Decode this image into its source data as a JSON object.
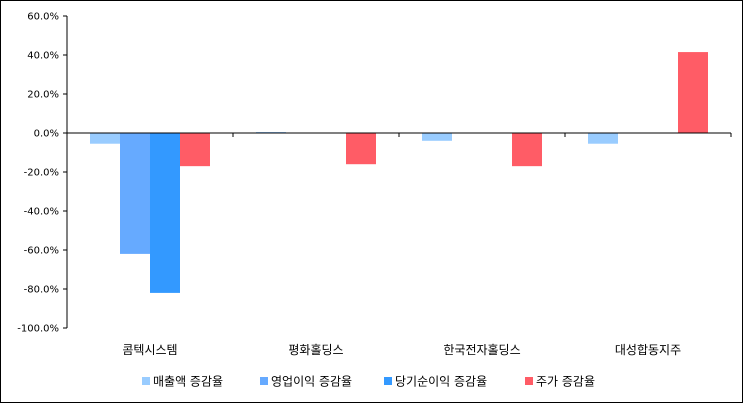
{
  "chart_data": {
    "type": "bar",
    "categories": [
      "콤텍시스템",
      "평화홀딩스",
      "한국전자홀딩스",
      "대성합동지주"
    ],
    "series": [
      {
        "name": "매출액 증감율",
        "color": "#99ccff",
        "values": [
          -5.5,
          0.5,
          -4.0,
          -5.5
        ]
      },
      {
        "name": "영업이익 증감율",
        "color": "#66aaff",
        "values": [
          -62.0,
          0,
          0,
          0
        ]
      },
      {
        "name": "당기순이익 증감율",
        "color": "#3399ff",
        "values": [
          -82.0,
          0,
          0,
          0
        ]
      },
      {
        "name": "주가 증감율",
        "color": "#ff5c66",
        "values": [
          -17.0,
          -16.0,
          -17.0,
          41.5
        ]
      }
    ],
    "ylim": [
      -100,
      60
    ],
    "yticks": [
      60,
      40,
      20,
      0,
      -20,
      -40,
      -60,
      -80,
      -100
    ],
    "ytick_labels": [
      "60.0%",
      "40.0%",
      "20.0%",
      "0.0%",
      "-20.0%",
      "-40.0%",
      "-60.0%",
      "-80.0%",
      "-100.0%"
    ],
    "grid": false,
    "legend_position": "bottom"
  }
}
